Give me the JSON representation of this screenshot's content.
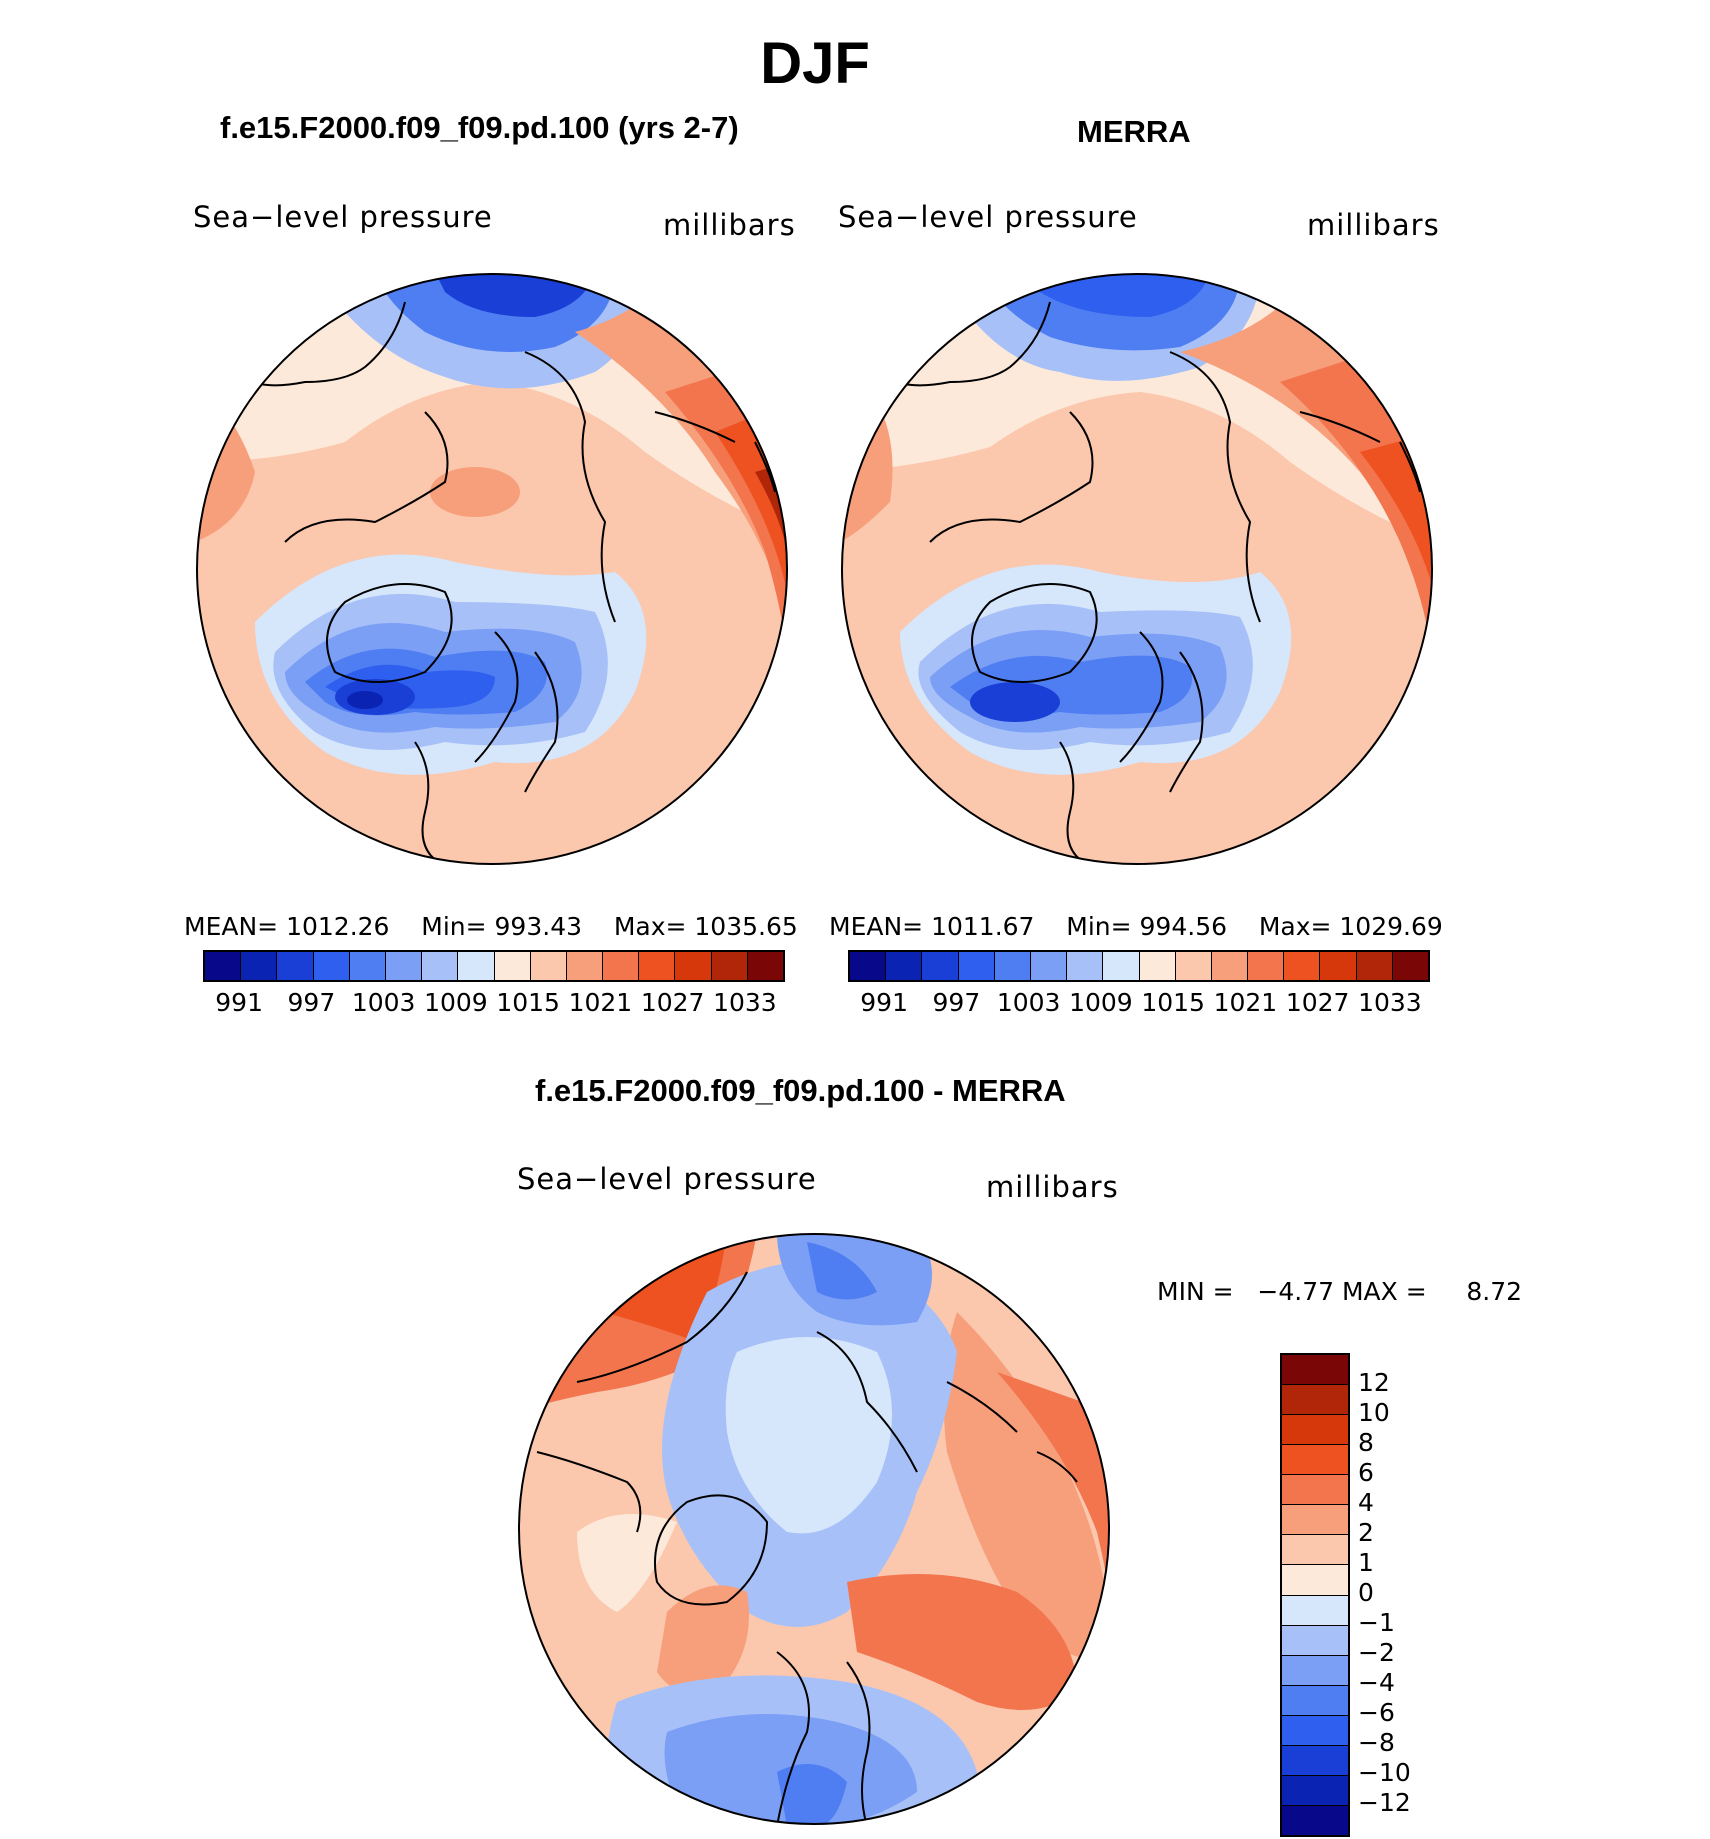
{
  "title": "DJF",
  "panels": {
    "model": {
      "title": "f.e15.F2000.f09_f09.pd.100 (yrs 2-7)",
      "left_label": "Sea−level  pressure",
      "right_label": "millibars",
      "mean_label": "MEAN=",
      "mean_value": "1012.26",
      "min_label": "Min=",
      "min_value": "993.43",
      "max_label": "Max=",
      "max_value": "1035.65"
    },
    "obs": {
      "title": "MERRA",
      "left_label": "Sea−level  pressure",
      "right_label": "millibars",
      "mean_label": "MEAN=",
      "mean_value": "1011.67",
      "min_label": "Min=",
      "min_value": "994.56",
      "max_label": "Max=",
      "max_value": "1029.69"
    },
    "diff": {
      "title": "f.e15.F2000.f09_f09.pd.100 - MERRA",
      "left_label": "Sea−level  pressure",
      "right_label": "millibars",
      "min_label": "MIN =",
      "min_value": "−4.77",
      "max_label": "MAX =",
      "max_value": "8.72"
    }
  },
  "colorbar_abs": {
    "colors": [
      "#08088a",
      "#0a23b3",
      "#1a3fd6",
      "#2e5fee",
      "#4f7df2",
      "#7b9ff5",
      "#a7c1f8",
      "#d6e6fb",
      "#fde9da",
      "#fbc7ad",
      "#f79e7b",
      "#f2754e",
      "#ee5221",
      "#d6380b",
      "#b12509",
      "#7a0606"
    ],
    "labels": [
      "991",
      "997",
      "1003",
      "1009",
      "1015",
      "1021",
      "1027",
      "1033"
    ]
  },
  "colorbar_diff": {
    "colors": [
      "#7a0606",
      "#b12509",
      "#d6380b",
      "#ee5221",
      "#f2754e",
      "#f79e7b",
      "#fbc7ad",
      "#fde9da",
      "#d6e6fb",
      "#a7c1f8",
      "#7b9ff5",
      "#4f7df2",
      "#2e5fee",
      "#1a3fd6",
      "#0a23b3",
      "#08088a"
    ],
    "labels": [
      "12",
      "10",
      "8",
      "6",
      "4",
      "2",
      "1",
      "0",
      "−1",
      "−2",
      "−4",
      "−6",
      "−8",
      "−10",
      "−12"
    ]
  },
  "chart_data": {
    "type": "heatmap",
    "variable": "Sea-level pressure",
    "units": "millibars",
    "season": "DJF",
    "projection": "north polar stereographic",
    "maps": [
      {
        "name": "f.e15.F2000.f09_f09.pd.100 (yrs 2-7)",
        "mean": 1012.26,
        "min": 993.43,
        "max": 1035.65
      },
      {
        "name": "MERRA",
        "mean": 1011.67,
        "min": 994.56,
        "max": 1029.69
      },
      {
        "name": "f.e15.F2000.f09_f09.pd.100 - MERRA",
        "min": -4.77,
        "max": 8.72
      }
    ],
    "abs_contour_levels": [
      991,
      994,
      997,
      1000,
      1003,
      1006,
      1009,
      1012,
      1015,
      1018,
      1021,
      1024,
      1027,
      1030,
      1033
    ],
    "diff_contour_levels": [
      -12,
      -10,
      -8,
      -6,
      -4,
      -2,
      -1,
      0,
      1,
      2,
      4,
      6,
      8,
      10,
      12
    ]
  }
}
